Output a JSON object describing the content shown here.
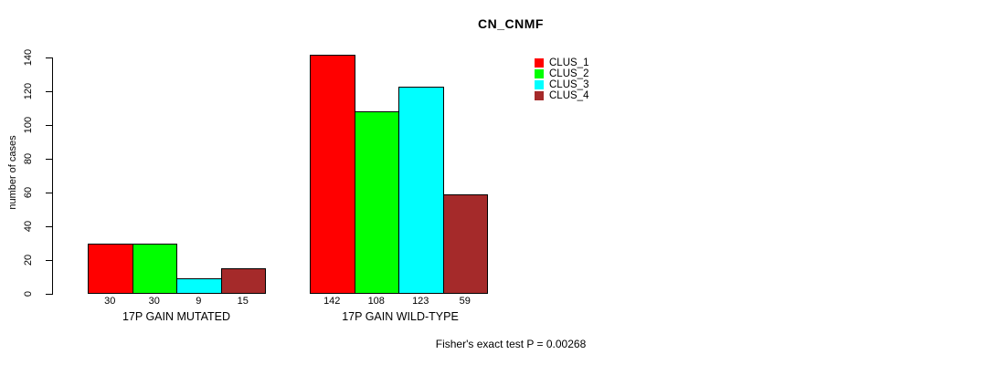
{
  "chart_data": {
    "type": "bar",
    "title": "CN_CNMF",
    "ylabel": "number of cases",
    "ylim": [
      0,
      140
    ],
    "yticks": [
      0,
      20,
      40,
      60,
      80,
      100,
      120,
      140
    ],
    "grid": false,
    "legend_position": "top-right",
    "bar_value_labels_shown": true,
    "categories": [
      "17P GAIN MUTATED",
      "17P GAIN WILD-TYPE"
    ],
    "series": [
      {
        "name": "CLUS_1",
        "color": "#ff0000",
        "values": [
          30,
          142
        ]
      },
      {
        "name": "CLUS_2",
        "color": "#00ff00",
        "values": [
          30,
          108
        ]
      },
      {
        "name": "CLUS_3",
        "color": "#00ffff",
        "values": [
          9,
          123
        ]
      },
      {
        "name": "CLUS_4",
        "color": "#a52a2a",
        "values": [
          15,
          59
        ]
      }
    ],
    "annotation": "Fisher's exact test P = 0.00268"
  }
}
